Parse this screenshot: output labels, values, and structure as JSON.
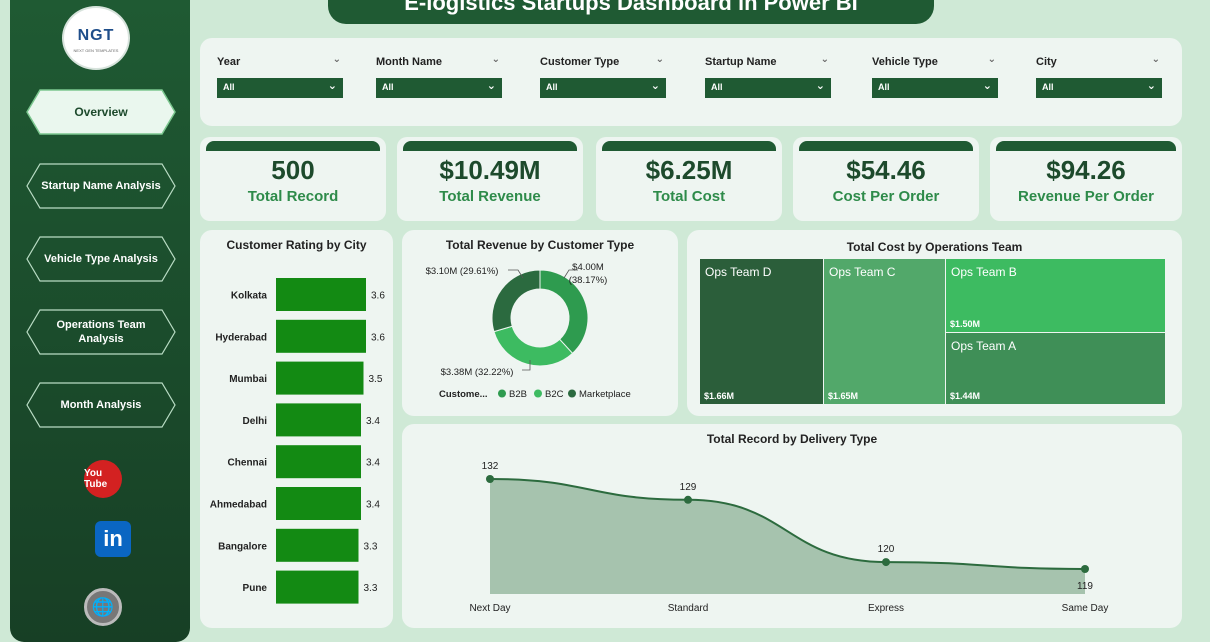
{
  "title": "E-logistics Startups Dashboard in Power BI",
  "logo": {
    "text": "NGT",
    "subtext": "NEXT GEN TEMPLATES"
  },
  "nav": [
    {
      "label": "Overview"
    },
    {
      "label": "Startup Name Analysis"
    },
    {
      "label": "Vehicle Type Analysis"
    },
    {
      "label": "Operations Team Analysis"
    },
    {
      "label": "Month Analysis"
    }
  ],
  "social": {
    "youtube": "You Tube",
    "linkedin": "in"
  },
  "icons": {
    "youtube": "youtube-icon",
    "linkedin": "linkedin-icon",
    "web": "globe-icon",
    "chevron": "chevron-down-icon"
  },
  "filters": [
    {
      "label": "Year",
      "value": "All"
    },
    {
      "label": "Month Name",
      "value": "All"
    },
    {
      "label": "Customer Type",
      "value": "All"
    },
    {
      "label": "Startup Name",
      "value": "All"
    },
    {
      "label": "Vehicle Type",
      "value": "All"
    },
    {
      "label": "City",
      "value": "All"
    }
  ],
  "kpis": [
    {
      "value": "500",
      "label": "Total Record"
    },
    {
      "value": "$10.49M",
      "label": "Total Revenue"
    },
    {
      "value": "$6.25M",
      "label": "Total Cost"
    },
    {
      "value": "$54.46",
      "label": "Cost Per Order"
    },
    {
      "value": "$94.26",
      "label": "Revenue Per Order"
    }
  ],
  "colors": {
    "dark": "#1f5a33",
    "bar": "#138a13",
    "b2b": "#2e9b4f",
    "b2c": "#3dbb61",
    "marketplace": "#2b6a3f",
    "area": "#a6c3ae",
    "line": "#2c6b3e"
  },
  "chart_data": [
    {
      "type": "bar",
      "title": "Customer Rating by City",
      "categories": [
        "Kolkata",
        "Hyderabad",
        "Mumbai",
        "Delhi",
        "Chennai",
        "Ahmedabad",
        "Bangalore",
        "Pune"
      ],
      "values": [
        3.6,
        3.6,
        3.5,
        3.4,
        3.4,
        3.4,
        3.3,
        3.3
      ],
      "orientation": "horizontal"
    },
    {
      "type": "pie",
      "title": "Total Revenue by Customer Type",
      "legend_title": "Custome...",
      "slices": [
        {
          "name": "B2B",
          "value": 4.0,
          "label": "$4.00M (38.17%)"
        },
        {
          "name": "B2C",
          "value": 3.38,
          "label": "$3.38M (32.22%)"
        },
        {
          "name": "Marketplace",
          "value": 3.1,
          "label": "$3.10M (29.61%)"
        }
      ]
    },
    {
      "type": "treemap",
      "title": "Total Cost by Operations Team",
      "items": [
        {
          "name": "Ops Team D",
          "value": 1.66,
          "label": "$1.66M"
        },
        {
          "name": "Ops Team C",
          "value": 1.65,
          "label": "$1.65M"
        },
        {
          "name": "Ops Team B",
          "value": 1.5,
          "label": "$1.50M"
        },
        {
          "name": "Ops Team A",
          "value": 1.44,
          "label": "$1.44M"
        }
      ]
    },
    {
      "type": "area",
      "title": "Total Record by Delivery Type",
      "categories": [
        "Next Day",
        "Standard",
        "Express",
        "Same Day"
      ],
      "values": [
        132,
        129,
        120,
        119
      ]
    }
  ]
}
